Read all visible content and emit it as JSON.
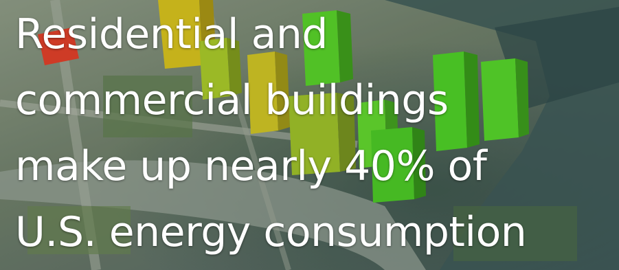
{
  "headline": {
    "line1": "Residential and",
    "line2": "commercial buildings",
    "line3": "make up nearly 40%  of",
    "line4": "U.S. energy consumption"
  },
  "colors": {
    "text": "#ffffff",
    "building_red": "#e0402a",
    "building_yellow": "#d6c21e",
    "building_yellow_green": "#a9c92a",
    "building_green": "#58d22a"
  }
}
